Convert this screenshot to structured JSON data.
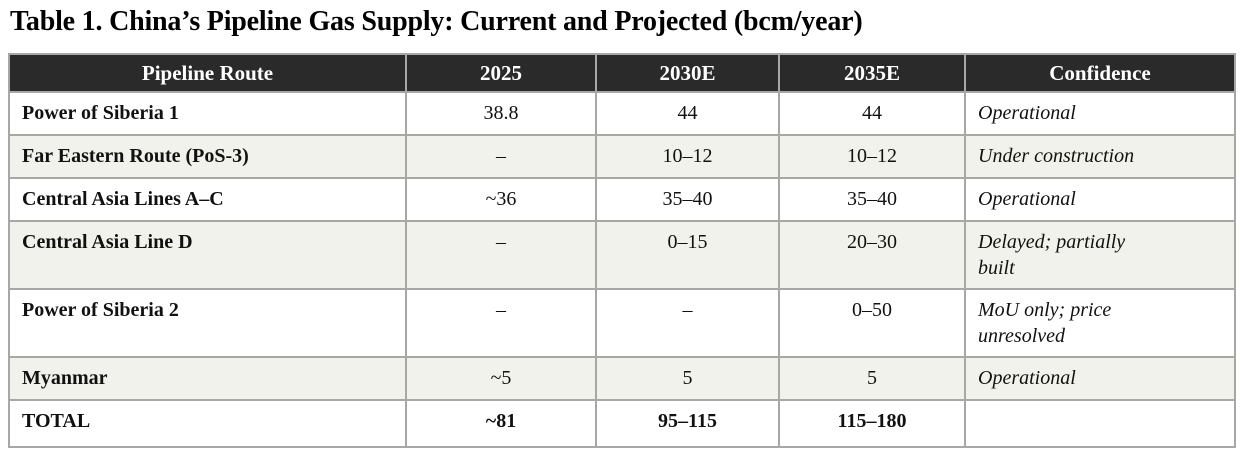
{
  "title": "Table 1. China’s Pipeline Gas Supply: Current and Projected (bcm/year)",
  "colors": {
    "header_background": "#2a2a2a",
    "header_text": "#ffffff",
    "shaded_row_background": "#f2f2ec",
    "grid_border": "#a7a7a4",
    "body_text": "#111111"
  },
  "table": {
    "columns": [
      "Pipeline Route",
      "2025",
      "2030E",
      "2035E",
      "Confidence"
    ],
    "rows": [
      {
        "route": "Power of Siberia 1",
        "y2025": "38.8",
        "y2030": "44",
        "y2035": "44",
        "confidence": "Operational"
      },
      {
        "route": "Far Eastern Route (PoS-3)",
        "y2025": "–",
        "y2030": "10–12",
        "y2035": "10–12",
        "confidence": "Under construction"
      },
      {
        "route": "Central Asia Lines A–C",
        "y2025": "~36",
        "y2030": "35–40",
        "y2035": "35–40",
        "confidence": "Operational"
      },
      {
        "route": "Central Asia Line D",
        "y2025": "–",
        "y2030": "0–15",
        "y2035": "20–30",
        "confidence": "Delayed; partially\nbuilt"
      },
      {
        "route": "Power of Siberia 2",
        "y2025": "–",
        "y2030": "–",
        "y2035": "0–50",
        "confidence": "MoU only; price\nunresolved"
      },
      {
        "route": "Myanmar",
        "y2025": "~5",
        "y2030": "5",
        "y2035": "5",
        "confidence": "Operational"
      },
      {
        "route": "TOTAL",
        "y2025": "~81",
        "y2030": "95–115",
        "y2035": "115–180",
        "confidence": ""
      }
    ]
  }
}
